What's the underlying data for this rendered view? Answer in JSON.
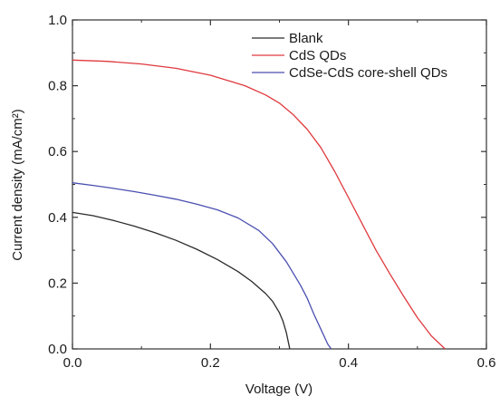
{
  "chart_data": {
    "type": "line",
    "title": "",
    "xlabel": "Voltage (V)",
    "ylabel": "Current density (mA/cm²)",
    "xlim": [
      0.0,
      0.6
    ],
    "ylim": [
      0.0,
      1.0
    ],
    "x_ticks": [
      0.0,
      0.2,
      0.4,
      0.6
    ],
    "x_tick_labels": [
      "0.0",
      "0.2",
      "0.4",
      "0.6"
    ],
    "y_ticks": [
      0.0,
      0.2,
      0.4,
      0.6,
      0.8,
      1.0
    ],
    "y_tick_labels": [
      "0.0",
      "0.2",
      "0.4",
      "0.6",
      "0.8",
      "1.0"
    ],
    "grid": false,
    "legend_position": "top-right",
    "series": [
      {
        "name": "Blank",
        "color": "#2b2b2b",
        "x": [
          0.0,
          0.03,
          0.06,
          0.09,
          0.12,
          0.15,
          0.18,
          0.21,
          0.24,
          0.26,
          0.28,
          0.29,
          0.3,
          0.305,
          0.31,
          0.315
        ],
        "y": [
          0.415,
          0.405,
          0.39,
          0.373,
          0.353,
          0.33,
          0.303,
          0.272,
          0.235,
          0.205,
          0.168,
          0.145,
          0.11,
          0.085,
          0.05,
          0.0
        ]
      },
      {
        "name": "CdS QDs",
        "color": "#e0393e",
        "x": [
          0.0,
          0.05,
          0.1,
          0.15,
          0.2,
          0.25,
          0.28,
          0.3,
          0.32,
          0.34,
          0.36,
          0.38,
          0.4,
          0.42,
          0.44,
          0.46,
          0.48,
          0.5,
          0.52,
          0.54
        ],
        "y": [
          0.878,
          0.874,
          0.866,
          0.853,
          0.832,
          0.8,
          0.772,
          0.747,
          0.712,
          0.668,
          0.612,
          0.54,
          0.46,
          0.38,
          0.3,
          0.228,
          0.16,
          0.095,
          0.04,
          0.0
        ]
      },
      {
        "name": "CdSe-CdS core-shell QDs",
        "color": "#4a4fb0",
        "x": [
          0.0,
          0.03,
          0.06,
          0.09,
          0.12,
          0.15,
          0.18,
          0.21,
          0.24,
          0.27,
          0.29,
          0.31,
          0.33,
          0.34,
          0.35,
          0.36,
          0.37,
          0.375
        ],
        "y": [
          0.505,
          0.497,
          0.488,
          0.478,
          0.467,
          0.455,
          0.44,
          0.423,
          0.398,
          0.36,
          0.32,
          0.265,
          0.195,
          0.155,
          0.105,
          0.06,
          0.015,
          0.0
        ]
      }
    ]
  }
}
